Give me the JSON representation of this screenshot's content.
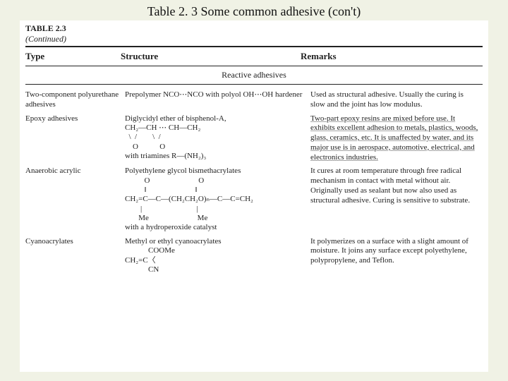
{
  "caption": "Table 2. 3 Some common adhesive (con't)",
  "tableLabel": "TABLE 2.3",
  "continued": "(Continued)",
  "headers": {
    "type": "Type",
    "structure": "Structure",
    "remarks": "Remarks"
  },
  "sectionTitle": "Reactive adhesives",
  "rows": {
    "r1": {
      "type": "Two-component polyurethane adhesives",
      "structure": "Prepolymer NCO⋯NCO with polyol OH⋯OH hardener",
      "remarks": "Used as structural adhesive. Usually the curing is slow and the joint has low modulus."
    },
    "r2": {
      "type": "Epoxy adhesives",
      "structTitle": "Diglycidyl ether of bisphenol-A,",
      "chemLine1": "CH₂—CH ⋯ CH—CH₂",
      "chemLine2": "  \\  /        \\  /",
      "chemLine3": "    O           O",
      "structTail": "with triamines R—(NH₂)₃",
      "remarks": "Two-part epoxy resins are mixed before use. It exhibits excellent adhesion to metals, plastics, woods, glass, ceramics, etc. It is unaffected by water, and its major use is in aerospace, automotive, electrical, and electronics industries."
    },
    "r3": {
      "type": "Anaerobic acrylic",
      "structTitle": "Polyethylene glycol bismethacrylates",
      "chemLine1": "          O                         O",
      "chemLine2": "          ‖                         ‖",
      "chemLine3": "CH₂=C—C—(CH₂CH₂O)ₙ—C—C=CH₂",
      "chemLine4": "        |                            |",
      "chemLine5": "       Me                         Me",
      "structTail": "with a hydroperoxide catalyst",
      "remarks": "It cures at room temperature through free radical mechanism in contact with metal without air. Originally used as sealant but now also used as structural adhesive. Curing is sensitive to substrate."
    },
    "r4": {
      "type": "Cyanoacrylates",
      "structTitle": "Methyl or ethyl cyanoacrylates",
      "chemLine1": "            COOMe",
      "chemLine2": "CH₂=C〈",
      "chemLine3": "            CN",
      "remarks": "It polymerizes on a surface with a slight amount of moisture. It joins any surface except polyethylene, polypropylene, and Teflon."
    }
  },
  "colors": {
    "pageBg": "#f0f2e5",
    "scanBg": "#ffffff",
    "text": "#222222",
    "rule": "#222222"
  }
}
